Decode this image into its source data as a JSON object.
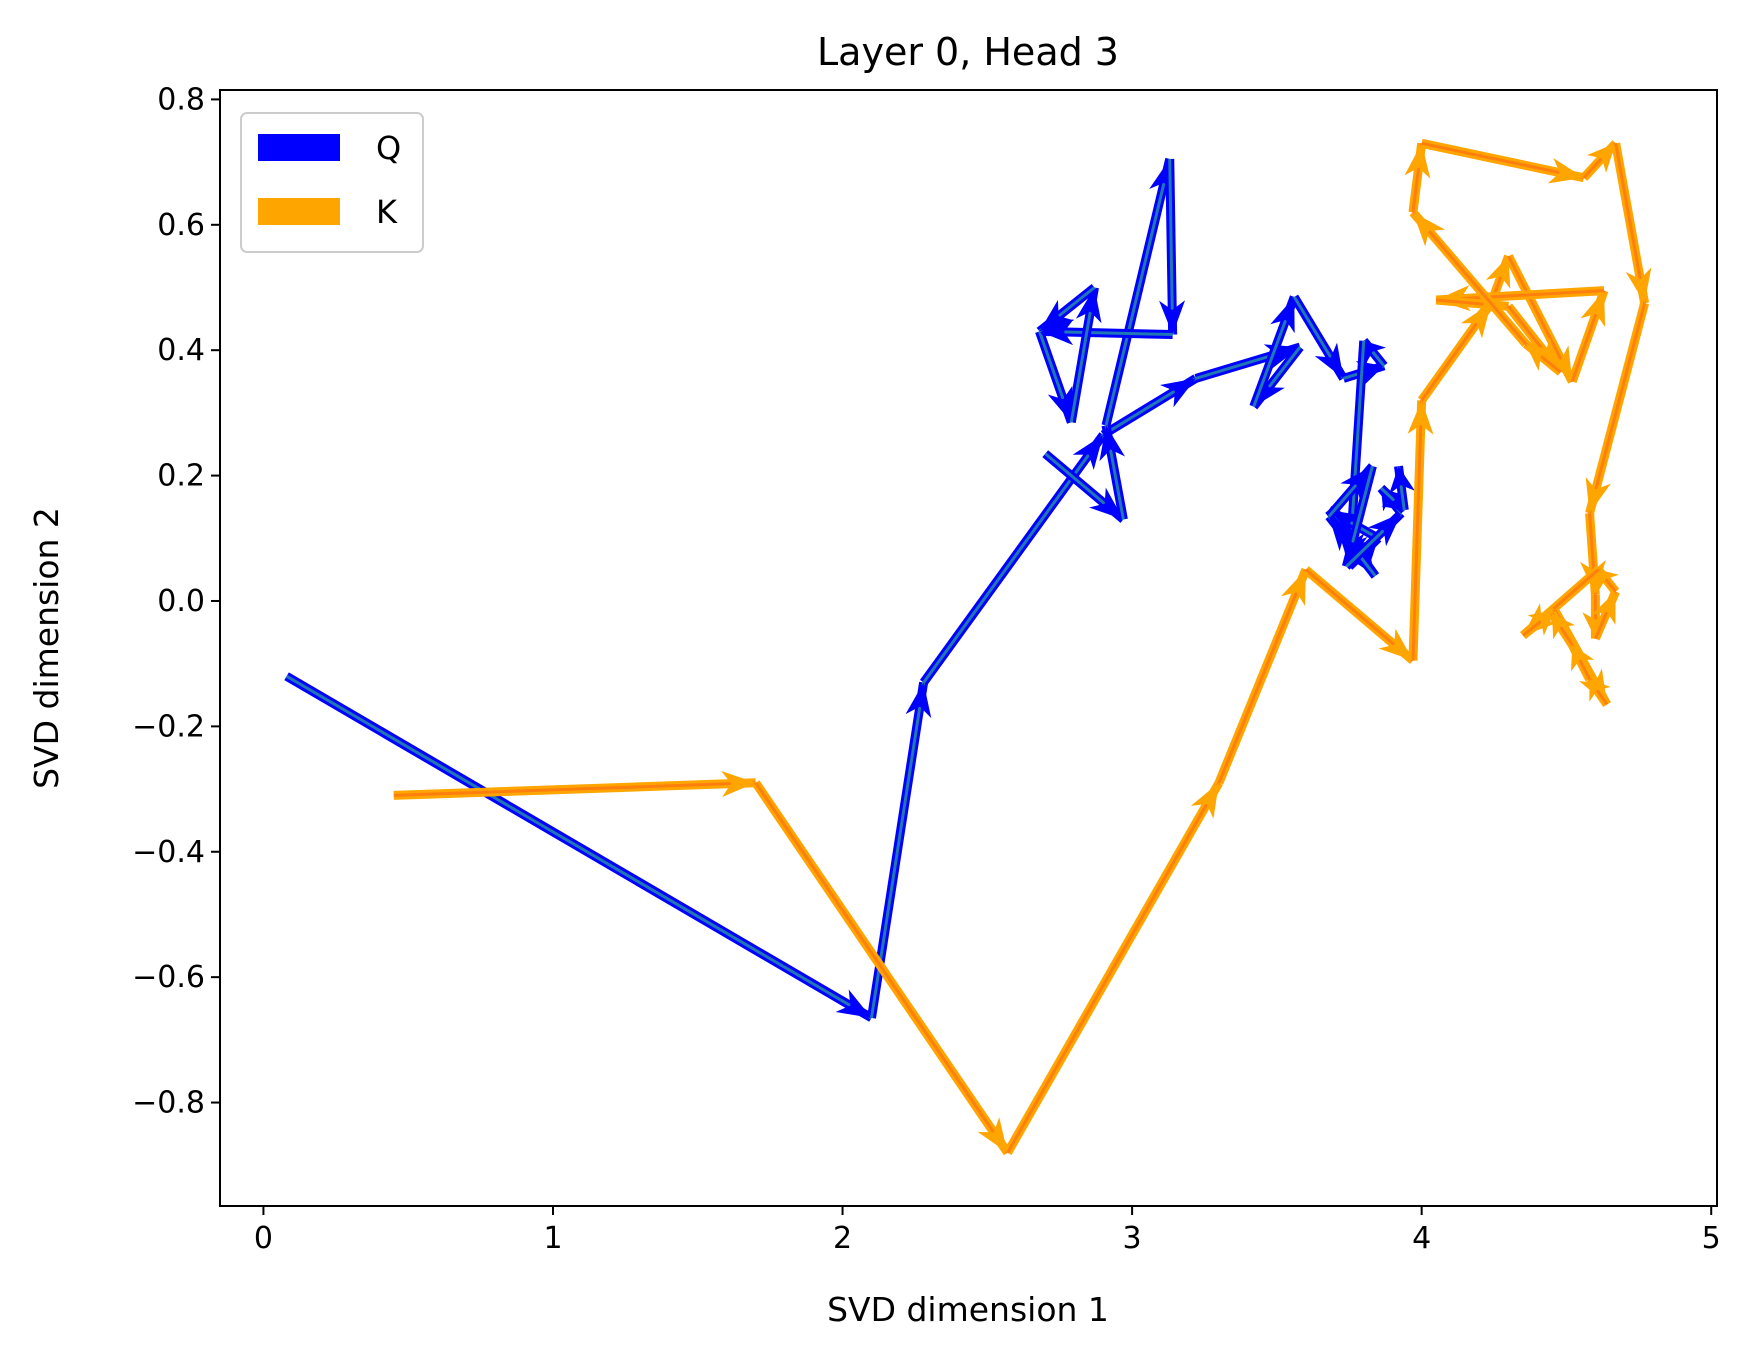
{
  "chart_data": {
    "type": "line",
    "title": "Layer 0, Head 3",
    "xlabel": "SVD dimension 1",
    "ylabel": "SVD dimension 2",
    "xlim": [
      -0.15,
      5.02
    ],
    "ylim": [
      -0.965,
      0.815
    ],
    "xticks": [
      0,
      1,
      2,
      3,
      4,
      5
    ],
    "xtick_labels": [
      "0",
      "1",
      "2",
      "3",
      "4",
      "5"
    ],
    "yticks": [
      -0.8,
      -0.6,
      -0.4,
      -0.2,
      0.0,
      0.2,
      0.4,
      0.6,
      0.8
    ],
    "ytick_labels": [
      "−0.8",
      "−0.6",
      "−0.4",
      "−0.2",
      "0.0",
      "0.2",
      "0.4",
      "0.6",
      "0.8"
    ],
    "grid": false,
    "legend_position": "top-left",
    "series": [
      {
        "name": "Q",
        "color": "#0000ff",
        "line_color": "#1f77b4",
        "points": [
          [
            0.08,
            -0.12
          ],
          [
            2.1,
            -0.665
          ],
          [
            2.28,
            -0.13
          ],
          [
            2.9,
            0.265
          ],
          [
            3.22,
            0.355
          ],
          [
            3.58,
            0.405
          ],
          [
            3.42,
            0.31
          ],
          [
            3.56,
            0.485
          ],
          [
            3.73,
            0.355
          ],
          [
            3.87,
            0.375
          ],
          [
            3.8,
            0.415
          ],
          [
            3.75,
            0.055
          ],
          [
            3.85,
            0.1
          ],
          [
            3.68,
            0.145
          ],
          [
            3.84,
            0.04
          ],
          [
            3.68,
            0.135
          ],
          [
            3.83,
            0.215
          ],
          [
            3.74,
            0.055
          ],
          [
            3.93,
            0.14
          ],
          [
            3.86,
            0.18
          ],
          [
            3.94,
            0.145
          ],
          [
            3.92,
            0.215
          ]
        ]
      },
      {
        "name": "",
        "color": "#0000ff",
        "line_color": "#1f77b4",
        "points": [
          [
            2.7,
            0.235
          ],
          [
            2.97,
            0.13
          ],
          [
            2.91,
            0.28
          ],
          [
            3.13,
            0.705
          ],
          [
            3.14,
            0.425
          ],
          [
            2.68,
            0.43
          ],
          [
            2.79,
            0.285
          ],
          [
            2.87,
            0.5
          ],
          [
            2.68,
            0.43
          ]
        ]
      },
      {
        "name": "K",
        "color": "#ffa500",
        "line_color": "#ff7f0e",
        "points": [
          [
            0.45,
            -0.31
          ],
          [
            1.7,
            -0.29
          ],
          [
            2.57,
            -0.88
          ],
          [
            3.3,
            -0.29
          ],
          [
            3.6,
            0.05
          ],
          [
            3.97,
            -0.095
          ],
          [
            4.0,
            0.32
          ],
          [
            4.24,
            0.475
          ],
          [
            4.3,
            0.55
          ],
          [
            4.52,
            0.35
          ],
          [
            4.63,
            0.495
          ],
          [
            4.05,
            0.48
          ],
          [
            4.3,
            0.47
          ],
          [
            4.48,
            0.365
          ],
          [
            4.36,
            0.41
          ],
          [
            3.97,
            0.62
          ],
          [
            4.0,
            0.73
          ],
          [
            4.56,
            0.675
          ],
          [
            4.67,
            0.73
          ],
          [
            4.77,
            0.475
          ],
          [
            4.58,
            0.14
          ],
          [
            4.6,
            0.01
          ],
          [
            4.6,
            -0.06
          ],
          [
            4.67,
            0.015
          ],
          [
            4.61,
            0.05
          ],
          [
            4.35,
            -0.055
          ],
          [
            4.46,
            -0.015
          ],
          [
            4.64,
            -0.165
          ],
          [
            4.58,
            -0.125
          ],
          [
            4.52,
            -0.07
          ],
          [
            4.45,
            -0.02
          ]
        ]
      }
    ]
  }
}
